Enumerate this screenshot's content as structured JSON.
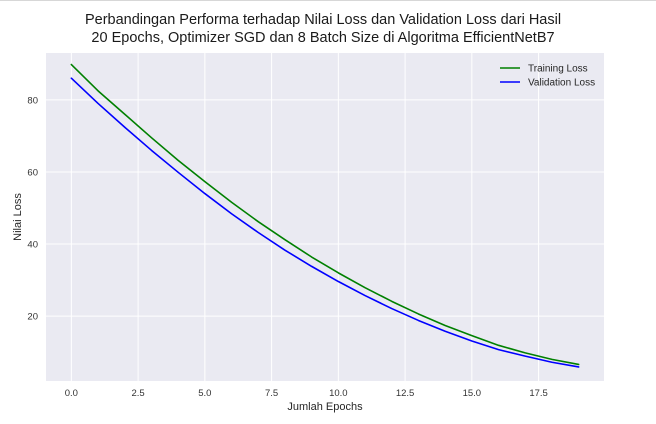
{
  "chart_data": {
    "type": "line",
    "title": "Perbandingan Performa terhadap Nilai Loss dan Validation Loss dari Hasil\n20 Epochs, Optimizer SGD dan 8 Batch Size di Algoritma EfficientNetB7",
    "xlabel": "Jumlah Epochs",
    "ylabel": "Nilai Loss",
    "xlim": [
      -0.95,
      19.95
    ],
    "ylim": [
      2,
      93
    ],
    "xticks": [
      0.0,
      2.5,
      5.0,
      7.5,
      10.0,
      12.5,
      15.0,
      17.5
    ],
    "xtick_labels": [
      "0.0",
      "2.5",
      "5.0",
      "7.5",
      "10.0",
      "12.5",
      "15.0",
      "17.5"
    ],
    "yticks": [
      20,
      40,
      60,
      80
    ],
    "ytick_labels": [
      "20",
      "40",
      "60",
      "80"
    ],
    "grid": true,
    "legend": "top-right",
    "x": [
      0,
      1,
      2,
      3,
      4,
      5,
      6,
      7,
      8,
      9,
      10,
      11,
      12,
      13,
      14,
      15,
      16,
      17,
      18,
      19
    ],
    "series": [
      {
        "name": "Training Loss",
        "color": "#008000",
        "values": [
          89.8,
          82.5,
          76.0,
          69.5,
          63.2,
          57.3,
          51.6,
          46.2,
          41.2,
          36.4,
          32.0,
          27.9,
          24.1,
          20.6,
          17.4,
          14.6,
          11.9,
          9.8,
          8.0,
          6.6
        ]
      },
      {
        "name": "Validation Loss",
        "color": "#0000ff",
        "values": [
          86.0,
          79.0,
          72.4,
          66.0,
          59.9,
          54.0,
          48.4,
          43.2,
          38.3,
          33.8,
          29.6,
          25.7,
          22.1,
          18.8,
          15.8,
          13.1,
          10.7,
          8.9,
          7.2,
          5.9
        ]
      }
    ]
  }
}
